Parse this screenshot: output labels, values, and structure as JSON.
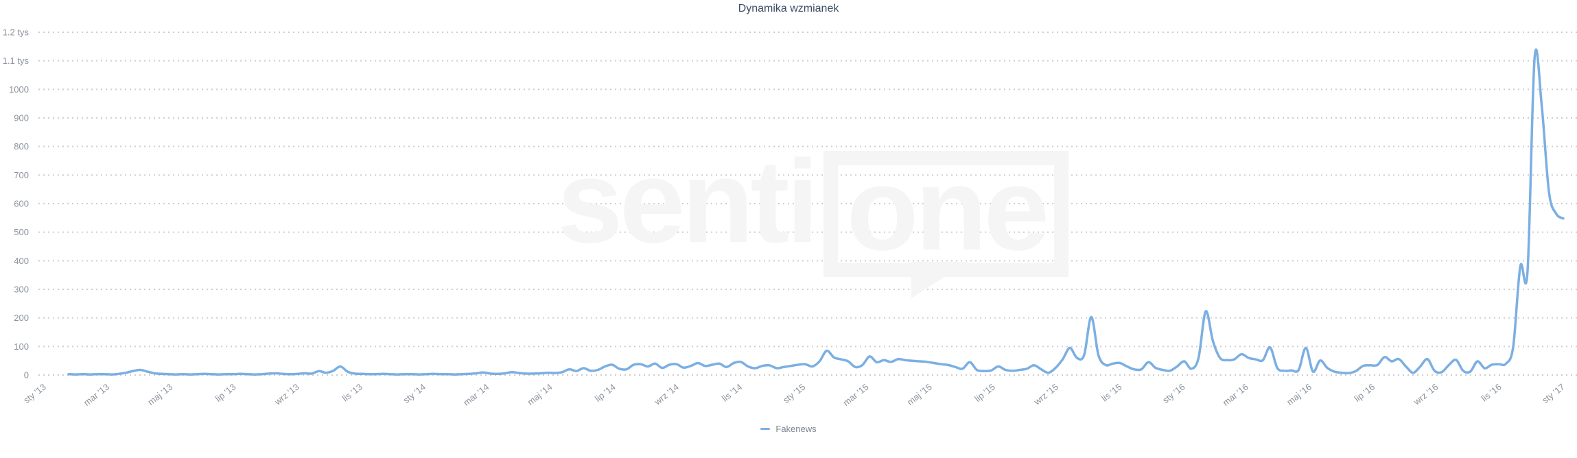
{
  "page": {
    "title": "Dynamika wzmianek"
  },
  "watermark": {
    "text_left": "senti",
    "text_boxed": "one"
  },
  "colors": {
    "line": "#7bafe2",
    "title": "#3c4d66",
    "axis_label": "#8a919c",
    "gridline": "#cdcdcd",
    "watermark": "#f5f5f5",
    "legend_label": "#7b8691"
  },
  "legend": {
    "position": "bottom-center",
    "items": [
      {
        "label": "Fakenews",
        "color": "#7bafe2"
      }
    ]
  },
  "chart_data": {
    "type": "line",
    "title": "Dynamika wzmianek",
    "xlabel": "",
    "ylabel": "",
    "x_unit": "week",
    "x_range": [
      "sty '13",
      "sty '17"
    ],
    "x_tick_labels": [
      "sty '13",
      "mar '13",
      "maj '13",
      "lip '13",
      "wrz '13",
      "lis '13",
      "sty '14",
      "mar '14",
      "maj '14",
      "lip '14",
      "wrz '14",
      "lis '14",
      "sty '15",
      "mar '15",
      "maj '15",
      "lip '15",
      "wrz '15",
      "lis '15",
      "sty '16",
      "mar '16",
      "maj '16",
      "lip '16",
      "wrz '16",
      "lis '16",
      "sty '17"
    ],
    "y_ticks": [
      {
        "value": 0,
        "label": "0"
      },
      {
        "value": 100,
        "label": "100"
      },
      {
        "value": 200,
        "label": "200"
      },
      {
        "value": 300,
        "label": "300"
      },
      {
        "value": 400,
        "label": "400"
      },
      {
        "value": 500,
        "label": "500"
      },
      {
        "value": 600,
        "label": "600"
      },
      {
        "value": 700,
        "label": "700"
      },
      {
        "value": 800,
        "label": "800"
      },
      {
        "value": 900,
        "label": "900"
      },
      {
        "value": 1000,
        "label": "1000"
      },
      {
        "value": 1100,
        "label": "1.1 tys"
      },
      {
        "value": 1200,
        "label": "1.2 tys"
      }
    ],
    "ylim": [
      0,
      1200
    ],
    "grid": "dotted-horizontal",
    "legend_position": "bottom-center",
    "series": [
      {
        "name": "Fakenews",
        "color": "#7bafe2",
        "values": [
          3,
          2,
          3,
          2,
          3,
          3,
          2,
          4,
          8,
          14,
          18,
          12,
          6,
          4,
          3,
          2,
          3,
          2,
          3,
          4,
          3,
          2,
          3,
          3,
          4,
          3,
          2,
          3,
          5,
          6,
          4,
          3,
          4,
          6,
          5,
          14,
          8,
          15,
          30,
          12,
          5,
          4,
          3,
          3,
          4,
          3,
          2,
          3,
          3,
          2,
          3,
          4,
          3,
          3,
          2,
          3,
          4,
          6,
          9,
          5,
          4,
          6,
          10,
          7,
          5,
          5,
          6,
          8,
          7,
          10,
          20,
          14,
          24,
          15,
          18,
          30,
          36,
          22,
          20,
          36,
          38,
          30,
          40,
          25,
          36,
          38,
          26,
          32,
          42,
          32,
          36,
          40,
          28,
          42,
          46,
          30,
          24,
          32,
          34,
          24,
          28,
          32,
          36,
          38,
          30,
          48,
          85,
          62,
          55,
          48,
          28,
          35,
          65,
          45,
          52,
          46,
          56,
          52,
          50,
          48,
          46,
          42,
          38,
          35,
          28,
          22,
          45,
          18,
          14,
          16,
          30,
          18,
          15,
          18,
          22,
          34,
          20,
          8,
          25,
          55,
          95,
          60,
          70,
          203,
          70,
          35,
          40,
          42,
          30,
          20,
          20,
          45,
          25,
          18,
          15,
          30,
          48,
          22,
          60,
          223,
          120,
          60,
          52,
          55,
          73,
          60,
          55,
          52,
          97,
          25,
          15,
          16,
          18,
          95,
          12,
          51,
          25,
          12,
          8,
          7,
          14,
          32,
          34,
          35,
          63,
          48,
          56,
          30,
          8,
          30,
          56,
          15,
          10,
          35,
          53,
          15,
          12,
          48,
          24,
          36,
          38,
          40,
          100,
          382,
          363,
          1113,
          940,
          640,
          565,
          548
        ]
      }
    ],
    "observed_extremes": {
      "max_value": 1113,
      "last_value": 548
    }
  }
}
